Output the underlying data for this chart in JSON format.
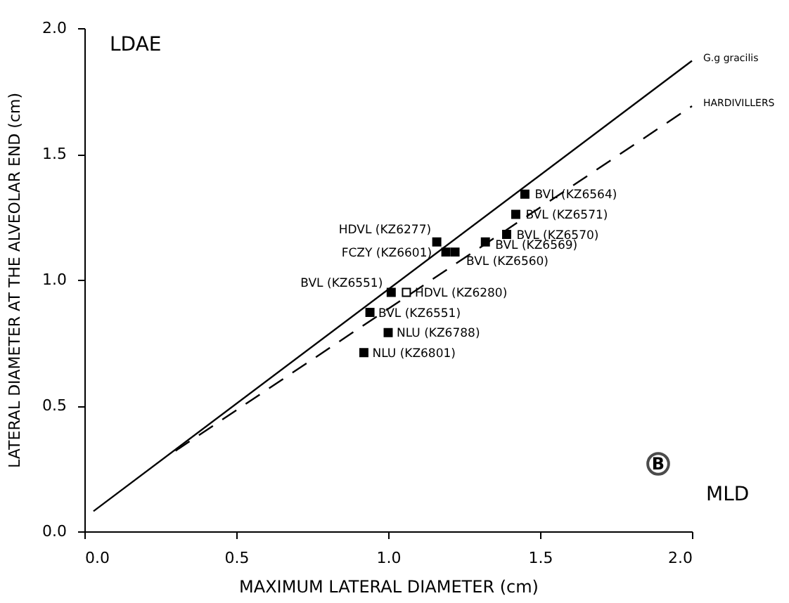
{
  "chart_data": {
    "type": "scatter",
    "xlabel": "MAXIMUM  LATERAL  DIAMETER  (cm)",
    "ylabel": "LATERAL  DIAMETER  AT  THE  ALVEOLAR  END  (cm)",
    "xlim": [
      0,
      2
    ],
    "ylim": [
      0,
      2
    ],
    "xticks": [
      {
        "value": 0,
        "label": "0.0"
      },
      {
        "value": 0.5,
        "label": "0.5"
      },
      {
        "value": 1,
        "label": "1.0"
      },
      {
        "value": 1.5,
        "label": "1.5"
      },
      {
        "value": 2,
        "label": "2.0"
      }
    ],
    "yticks": [
      {
        "value": 0,
        "label": "0.0"
      },
      {
        "value": 0.5,
        "label": "0.5"
      },
      {
        "value": 1,
        "label": "1.0"
      },
      {
        "value": 1.5,
        "label": "1.5"
      },
      {
        "value": 2,
        "label": "2.0"
      }
    ],
    "grid": false,
    "series": [
      {
        "name": "G.g gracilis",
        "type": "line",
        "line_style": "solid",
        "marker": "none",
        "color": "#000000",
        "x": [
          0.03,
          2.0
        ],
        "values": [
          0.08,
          1.87
        ]
      },
      {
        "name": "HARDIVILLERS",
        "type": "line",
        "line_style": "dashed",
        "marker": "none",
        "color": "#000000",
        "x": [
          0.3,
          2.0
        ],
        "values": [
          0.32,
          1.69
        ]
      },
      {
        "marker": "square",
        "color": "#000000",
        "x": [
          1.45,
          1.42,
          1.39,
          1.32,
          1.16,
          1.19,
          1.22,
          1.01,
          0.94,
          1.0,
          0.92
        ],
        "values": [
          1.34,
          1.26,
          1.18,
          1.15,
          1.15,
          1.11,
          1.11,
          0.95,
          0.87,
          0.79,
          0.71
        ]
      },
      {
        "marker": "square",
        "color": "#ffffff",
        "x": [
          1.06
        ],
        "values": [
          0.95
        ]
      }
    ],
    "annotations": [
      {
        "text": "BVL (KZ6564)",
        "x": 1.45,
        "y": 1.34
      },
      {
        "text": "BVL (KZ6571)",
        "x": 1.42,
        "y": 1.26
      },
      {
        "text": "BVL (KZ6570)",
        "x": 1.39,
        "y": 1.18
      },
      {
        "text": "BVL (KZ6569)",
        "x": 1.32,
        "y": 1.15
      },
      {
        "text": "HDVL (KZ6277)",
        "x": 1.16,
        "y": 1.15
      },
      {
        "text": "FCZY (KZ6601)",
        "x": 1.19,
        "y": 1.11
      },
      {
        "text": "BVL (KZ6560)",
        "x": 1.22,
        "y": 1.11
      },
      {
        "text": "BVL (KZ6551)",
        "x": 1.01,
        "y": 0.95
      },
      {
        "text": "HDVL (KZ6280)",
        "x": 1.06,
        "y": 0.95
      },
      {
        "text": "BVL (KZ6551)",
        "x": 0.94,
        "y": 0.87
      },
      {
        "text": "NLU (KZ6788)",
        "x": 1.0,
        "y": 0.79
      },
      {
        "text": "NLU (KZ6801)",
        "x": 0.92,
        "y": 0.71
      },
      "LDAE",
      "MLD",
      "B"
    ]
  }
}
